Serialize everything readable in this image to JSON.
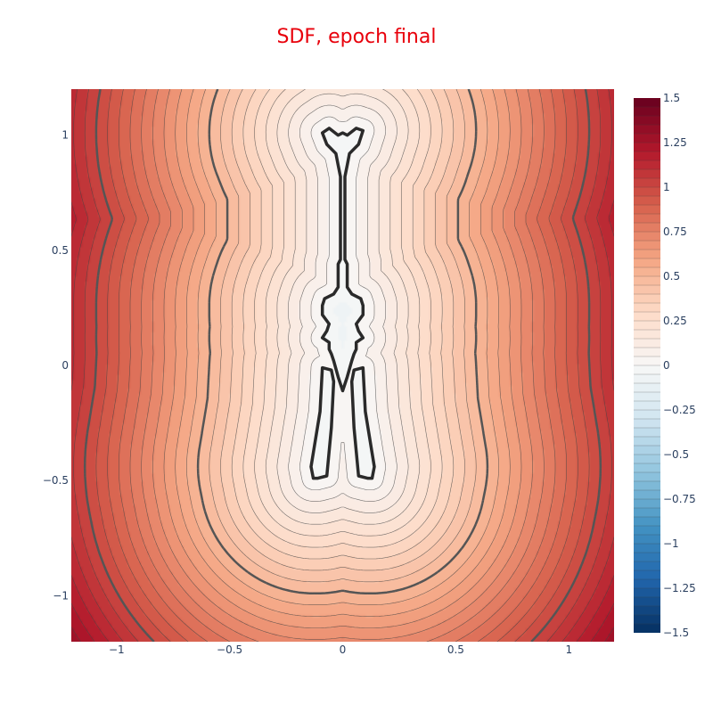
{
  "chart_data": {
    "type": "contour",
    "title": "SDF, epoch final",
    "xlabel": "",
    "ylabel": "",
    "xlim": [
      -1.2,
      1.2
    ],
    "ylim": [
      -1.2,
      1.2
    ],
    "x_ticks": [
      -1,
      -0.5,
      0,
      0.5,
      1
    ],
    "x_tick_labels": [
      "−1",
      "−0.5",
      "0",
      "0.5",
      "1"
    ],
    "y_ticks": [
      -1,
      -0.5,
      0,
      0.5,
      1
    ],
    "y_tick_labels": [
      "−1",
      "−0.5",
      "0",
      "0.5",
      "1"
    ],
    "zlim": [
      -1.5,
      1.5
    ],
    "contour_step": 0.05,
    "colorscale": "RdBu reversed",
    "colorbar_ticks": [
      1.5,
      1.25,
      1,
      0.75,
      0.5,
      0.25,
      0,
      -0.25,
      -0.5,
      -0.75,
      -1,
      -1.25,
      -1.5
    ],
    "colorbar_tick_labels": [
      "1.5",
      "1.25",
      "1",
      "0.75",
      "0.5",
      "0.25",
      "0",
      "−0.25",
      "−0.5",
      "−0.75",
      "−1",
      "−1.25",
      "−1.5"
    ],
    "highlighted_levels": [
      0,
      0.5,
      1.0
    ],
    "zero_level_shape": [
      [
        [
          -0.09,
          1.01
        ],
        [
          -0.06,
          1.03
        ],
        [
          -0.02,
          1.0
        ],
        [
          0.0,
          1.01
        ],
        [
          0.02,
          1.0
        ],
        [
          0.06,
          1.03
        ],
        [
          0.09,
          1.02
        ],
        [
          0.07,
          0.96
        ],
        [
          0.03,
          0.92
        ],
        [
          0.02,
          0.87
        ],
        [
          0.01,
          0.82
        ],
        [
          0.01,
          0.6
        ],
        [
          0.01,
          0.46
        ],
        [
          0.02,
          0.44
        ],
        [
          0.02,
          0.34
        ],
        [
          0.04,
          0.31
        ],
        [
          0.08,
          0.29
        ],
        [
          0.09,
          0.26
        ],
        [
          0.09,
          0.22
        ],
        [
          0.06,
          0.18
        ],
        [
          0.07,
          0.15
        ],
        [
          0.09,
          0.12
        ],
        [
          0.06,
          0.1
        ],
        [
          0.06,
          0.07
        ],
        [
          0.05,
          0.05
        ],
        [
          0.04,
          0.02
        ],
        [
          0.02,
          -0.05
        ],
        [
          0.0,
          -0.11
        ],
        [
          -0.02,
          -0.05
        ],
        [
          -0.04,
          0.02
        ],
        [
          -0.05,
          0.05
        ],
        [
          -0.06,
          0.07
        ],
        [
          -0.06,
          0.1
        ],
        [
          -0.09,
          0.12
        ],
        [
          -0.07,
          0.15
        ],
        [
          -0.06,
          0.18
        ],
        [
          -0.09,
          0.22
        ],
        [
          -0.09,
          0.26
        ],
        [
          -0.08,
          0.29
        ],
        [
          -0.04,
          0.31
        ],
        [
          -0.02,
          0.34
        ],
        [
          -0.02,
          0.44
        ],
        [
          -0.01,
          0.46
        ],
        [
          -0.01,
          0.6
        ],
        [
          -0.01,
          0.82
        ],
        [
          -0.02,
          0.87
        ],
        [
          -0.03,
          0.92
        ],
        [
          -0.07,
          0.96
        ],
        [
          -0.09,
          1.01
        ]
      ],
      [
        [
          -0.11,
          -0.49
        ],
        [
          -0.07,
          -0.48
        ],
        [
          -0.05,
          -0.27
        ],
        [
          -0.04,
          -0.07
        ],
        [
          -0.05,
          -0.02
        ],
        [
          -0.09,
          -0.01
        ],
        [
          -0.1,
          -0.2
        ],
        [
          -0.14,
          -0.44
        ],
        [
          -0.13,
          -0.49
        ],
        [
          -0.11,
          -0.49
        ]
      ],
      [
        [
          0.11,
          -0.49
        ],
        [
          0.07,
          -0.48
        ],
        [
          0.05,
          -0.27
        ],
        [
          0.04,
          -0.07
        ],
        [
          0.05,
          -0.02
        ],
        [
          0.09,
          -0.01
        ],
        [
          0.1,
          -0.2
        ],
        [
          0.14,
          -0.44
        ],
        [
          0.13,
          -0.49
        ],
        [
          0.11,
          -0.49
        ]
      ]
    ]
  }
}
